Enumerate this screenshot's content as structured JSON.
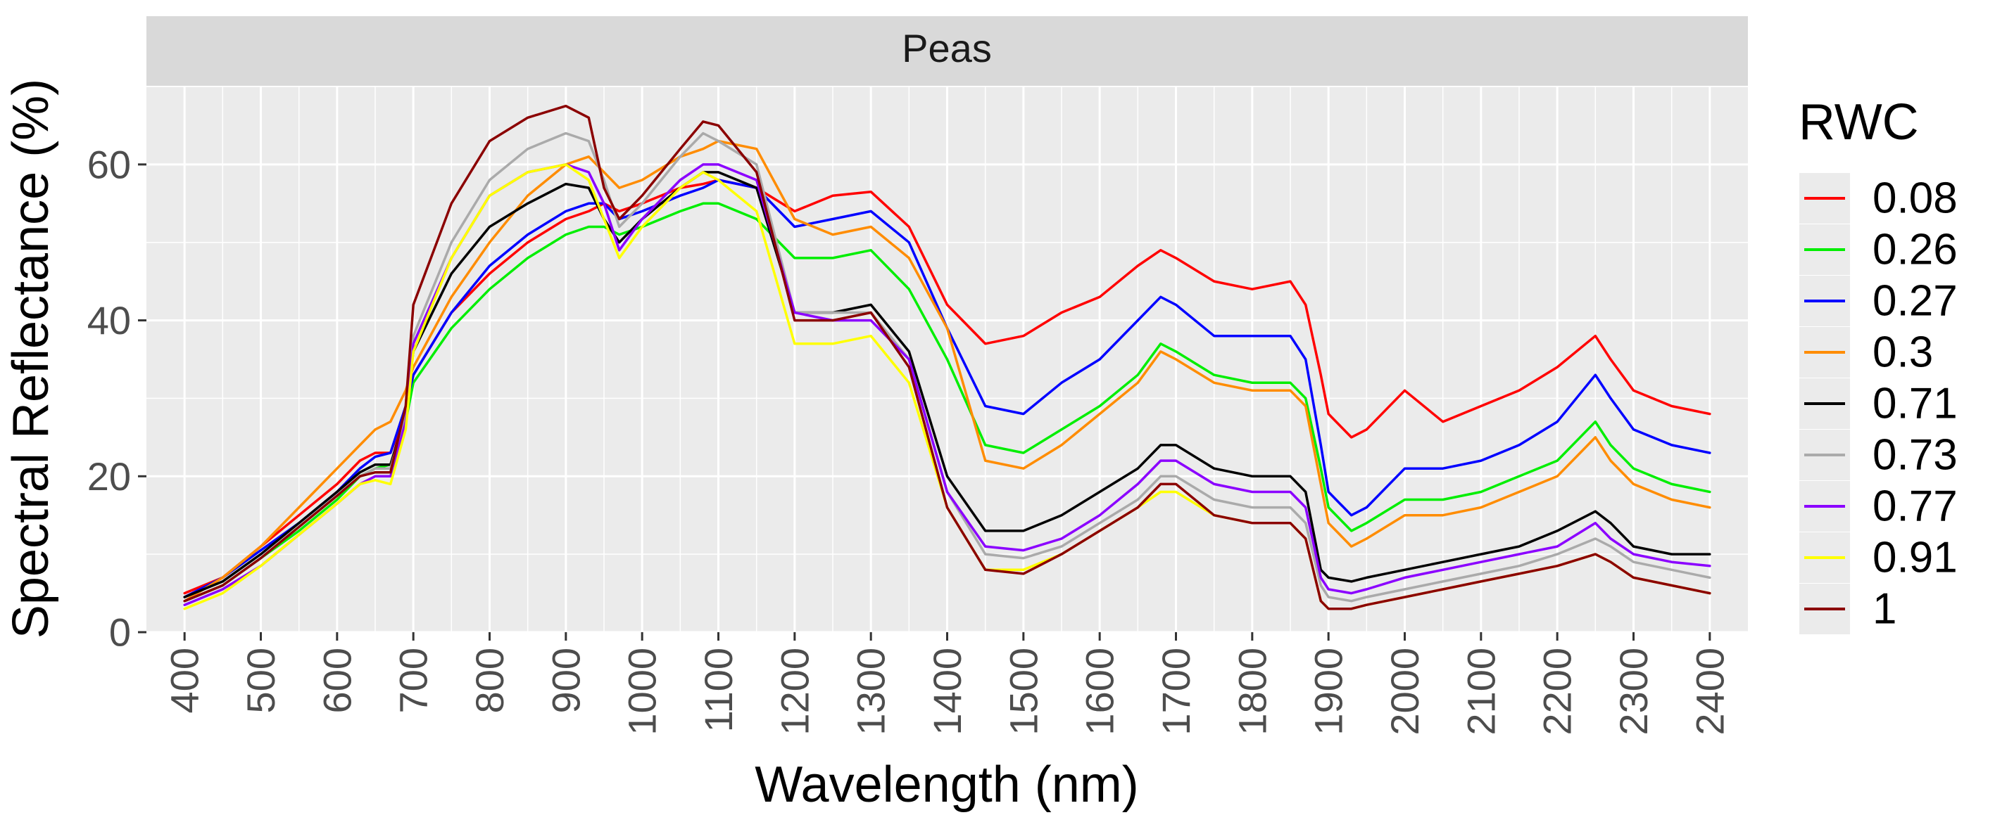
{
  "chart_data": {
    "type": "line",
    "facet_title": "Peas",
    "xlabel": "Wavelength (nm)",
    "ylabel": "Spectral Reflectance (%)",
    "xlim": [
      350,
      2450
    ],
    "ylim": [
      0,
      70
    ],
    "x_ticks": [
      "400",
      "500",
      "600",
      "700",
      "800",
      "900",
      "1000",
      "1100",
      "1200",
      "1300",
      "1400",
      "1500",
      "1600",
      "1700",
      "1800",
      "1900",
      "2000",
      "2100",
      "2200",
      "2300",
      "2400"
    ],
    "y_ticks": [
      "0",
      "20",
      "40",
      "60"
    ],
    "grid": true,
    "legend": {
      "title": "RWC",
      "position": "right"
    },
    "x": [
      400,
      450,
      500,
      550,
      600,
      630,
      650,
      670,
      690,
      700,
      750,
      800,
      850,
      900,
      930,
      950,
      970,
      1000,
      1050,
      1080,
      1100,
      1150,
      1200,
      1250,
      1300,
      1350,
      1400,
      1450,
      1500,
      1550,
      1600,
      1650,
      1680,
      1700,
      1750,
      1800,
      1850,
      1870,
      1890,
      1900,
      1930,
      1950,
      2000,
      2050,
      2100,
      2150,
      2200,
      2250,
      2270,
      2300,
      2350,
      2400
    ],
    "series": [
      {
        "name": "0.08",
        "color": "#ff0000",
        "values": [
          5,
          7,
          11,
          15,
          19,
          22,
          23,
          23,
          28,
          33,
          41,
          46,
          50,
          53,
          54,
          55,
          54,
          55,
          57,
          57.5,
          58,
          57,
          54,
          56,
          56.5,
          52,
          42,
          37,
          38,
          41,
          43,
          47,
          49,
          48,
          45,
          44,
          45,
          42,
          33,
          28,
          25,
          26,
          31,
          27,
          29,
          31,
          34,
          38,
          35,
          31,
          29,
          28
        ]
      },
      {
        "name": "0.26",
        "color": "#00ee00",
        "values": [
          4,
          6,
          9.5,
          13,
          17,
          20,
          21,
          21.5,
          27,
          32,
          39,
          44,
          48,
          51,
          52,
          52,
          51,
          52,
          54,
          55,
          55,
          53,
          48,
          48,
          49,
          44,
          35,
          24,
          23,
          26,
          29,
          33,
          37,
          36,
          33,
          32,
          32,
          30,
          21,
          16,
          13,
          14,
          17,
          17,
          18,
          20,
          22,
          27,
          24,
          21,
          19,
          18
        ]
      },
      {
        "name": "0.27",
        "color": "#0000ff",
        "values": [
          4.5,
          7,
          10.5,
          14,
          18,
          21,
          22.5,
          23,
          29,
          33,
          41,
          47,
          51,
          54,
          55,
          55,
          53,
          54,
          56,
          57,
          58,
          57,
          52,
          53,
          54,
          50,
          39,
          29,
          28,
          32,
          35,
          40,
          43,
          42,
          38,
          38,
          38,
          35,
          24,
          18,
          15,
          16,
          21,
          21,
          22,
          24,
          27,
          33,
          30,
          26,
          24,
          23
        ]
      },
      {
        "name": "0.3",
        "color": "#ff8c00",
        "values": [
          4,
          7,
          11,
          16,
          21,
          24,
          26,
          27,
          31,
          34,
          43,
          50,
          56,
          60,
          61,
          59,
          57,
          58,
          61,
          62,
          63,
          62,
          53,
          51,
          52,
          48,
          39,
          22,
          21,
          24,
          28,
          32,
          36,
          35,
          32,
          31,
          31,
          29,
          19,
          14,
          11,
          12,
          15,
          15,
          16,
          18,
          20,
          25,
          22,
          19,
          17,
          16
        ]
      },
      {
        "name": "0.71",
        "color": "#000000",
        "values": [
          4.5,
          6.5,
          10,
          14,
          18,
          20.5,
          21.5,
          21.5,
          28,
          36,
          46,
          52,
          55,
          57.5,
          57,
          53,
          50,
          53,
          57,
          59,
          59,
          57,
          41,
          41,
          42,
          36,
          20,
          13,
          13,
          15,
          18,
          21,
          24,
          24,
          21,
          20,
          20,
          18,
          8,
          7,
          6.5,
          7,
          8,
          9,
          10,
          11,
          13,
          15.5,
          14,
          11,
          10,
          10
        ]
      },
      {
        "name": "0.73",
        "color": "#aaaaaa",
        "values": [
          4,
          6,
          9.5,
          13.5,
          17.5,
          20,
          21,
          21,
          28,
          38,
          50,
          58,
          62,
          64,
          63,
          58,
          52,
          55,
          61,
          64,
          63,
          60,
          41,
          41,
          41,
          35,
          18,
          10,
          9.5,
          11,
          14,
          17,
          20,
          20,
          17,
          16,
          16,
          14,
          6,
          4.5,
          4,
          4.5,
          5.5,
          6.5,
          7.5,
          8.5,
          10,
          12,
          11,
          9,
          8,
          7
        ]
      },
      {
        "name": "0.77",
        "color": "#8b00ff",
        "values": [
          3.5,
          5.5,
          8.5,
          12.5,
          16.5,
          19,
          20,
          20,
          27,
          37,
          48,
          56,
          59,
          60,
          59,
          55,
          49,
          53,
          58,
          60,
          60,
          58,
          41,
          40,
          40,
          35,
          18,
          11,
          10.5,
          12,
          15,
          19,
          22,
          22,
          19,
          18,
          18,
          16,
          7,
          5.5,
          5,
          5.5,
          7,
          8,
          9,
          10,
          11,
          14,
          12,
          10,
          9,
          8.5
        ]
      },
      {
        "name": "0.91",
        "color": "#ffff00",
        "values": [
          3,
          5,
          8.5,
          12.5,
          16.5,
          19,
          19.5,
          19,
          26,
          36,
          48,
          56,
          59,
          60,
          58,
          53,
          48,
          52,
          57,
          59,
          58,
          54,
          37,
          37,
          38,
          32,
          16,
          8,
          8,
          10,
          13,
          16,
          18,
          18,
          15,
          14,
          14,
          12,
          4,
          3,
          3,
          3.5,
          4.5,
          5.5,
          6.5,
          7.5,
          8.5,
          10,
          9,
          7,
          6,
          5
        ]
      },
      {
        "name": "1",
        "color": "#8b0000",
        "values": [
          4,
          6,
          9.5,
          13.5,
          17.5,
          20,
          20.5,
          20.5,
          29,
          42,
          55,
          63,
          66,
          67.5,
          66,
          57,
          53,
          56,
          62,
          65.5,
          65,
          59,
          40,
          40,
          41,
          34,
          16,
          8,
          7.5,
          10,
          13,
          16,
          19,
          19,
          15,
          14,
          14,
          12,
          4,
          3,
          3,
          3.5,
          4.5,
          5.5,
          6.5,
          7.5,
          8.5,
          10,
          9,
          7,
          6,
          5
        ]
      }
    ]
  }
}
